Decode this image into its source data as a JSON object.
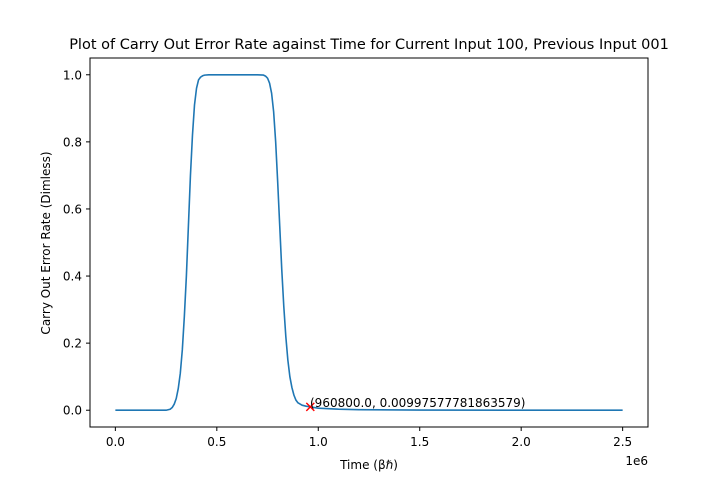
{
  "chart_data": {
    "type": "line",
    "title": "Plot of Carry Out Error Rate against Time for Current Input 100, Previous Input 001",
    "xlabel": "Time (βℏ)",
    "ylabel": "Carry Out Error Rate (Dimless)",
    "x_offset_label": "1e6",
    "xlim": [
      -0.125,
      2.625
    ],
    "ylim": [
      -0.05,
      1.05
    ],
    "xticks": [
      {
        "value": 0.0,
        "label": "0.0"
      },
      {
        "value": 0.5,
        "label": "0.5"
      },
      {
        "value": 1.0,
        "label": "1.0"
      },
      {
        "value": 1.5,
        "label": "1.5"
      },
      {
        "value": 2.0,
        "label": "2.0"
      },
      {
        "value": 2.5,
        "label": "2.5"
      }
    ],
    "yticks": [
      {
        "value": 0.0,
        "label": "0.0"
      },
      {
        "value": 0.2,
        "label": "0.2"
      },
      {
        "value": 0.4,
        "label": "0.4"
      },
      {
        "value": 0.6,
        "label": "0.6"
      },
      {
        "value": 0.8,
        "label": "0.8"
      },
      {
        "value": 1.0,
        "label": "1.0"
      }
    ],
    "grid": false,
    "series": [
      {
        "color": "#1f77b4",
        "x": [
          0.0,
          0.1,
          0.2,
          0.25,
          0.27,
          0.28,
          0.29,
          0.3,
          0.31,
          0.32,
          0.33,
          0.34,
          0.35,
          0.36,
          0.37,
          0.38,
          0.39,
          0.4,
          0.41,
          0.42,
          0.43,
          0.44,
          0.46,
          0.5,
          0.6,
          0.7,
          0.73,
          0.74,
          0.75,
          0.76,
          0.77,
          0.78,
          0.79,
          0.8,
          0.81,
          0.82,
          0.83,
          0.84,
          0.85,
          0.86,
          0.87,
          0.88,
          0.89,
          0.9,
          0.92,
          0.94,
          0.9608,
          1.0,
          1.1,
          1.2,
          1.5,
          2.0,
          2.5
        ],
        "y": [
          0.0,
          0.0,
          0.0,
          0.0,
          0.003,
          0.008,
          0.018,
          0.035,
          0.065,
          0.11,
          0.18,
          0.28,
          0.4,
          0.55,
          0.7,
          0.82,
          0.91,
          0.96,
          0.985,
          0.993,
          0.997,
          0.999,
          1.0,
          1.0,
          1.0,
          1.0,
          0.999,
          0.996,
          0.99,
          0.975,
          0.945,
          0.89,
          0.8,
          0.68,
          0.55,
          0.42,
          0.31,
          0.22,
          0.15,
          0.1,
          0.068,
          0.045,
          0.03,
          0.022,
          0.015,
          0.012,
          0.00997577781863579,
          0.006,
          0.003,
          0.0015,
          0.0005,
          0.0002,
          0.0001
        ]
      }
    ],
    "marker": {
      "x": 0.9608,
      "y": 0.00997577781863579,
      "color": "#ff0000",
      "symbol": "x"
    },
    "annotation": "(960800.0, 0.00997577781863579)"
  }
}
